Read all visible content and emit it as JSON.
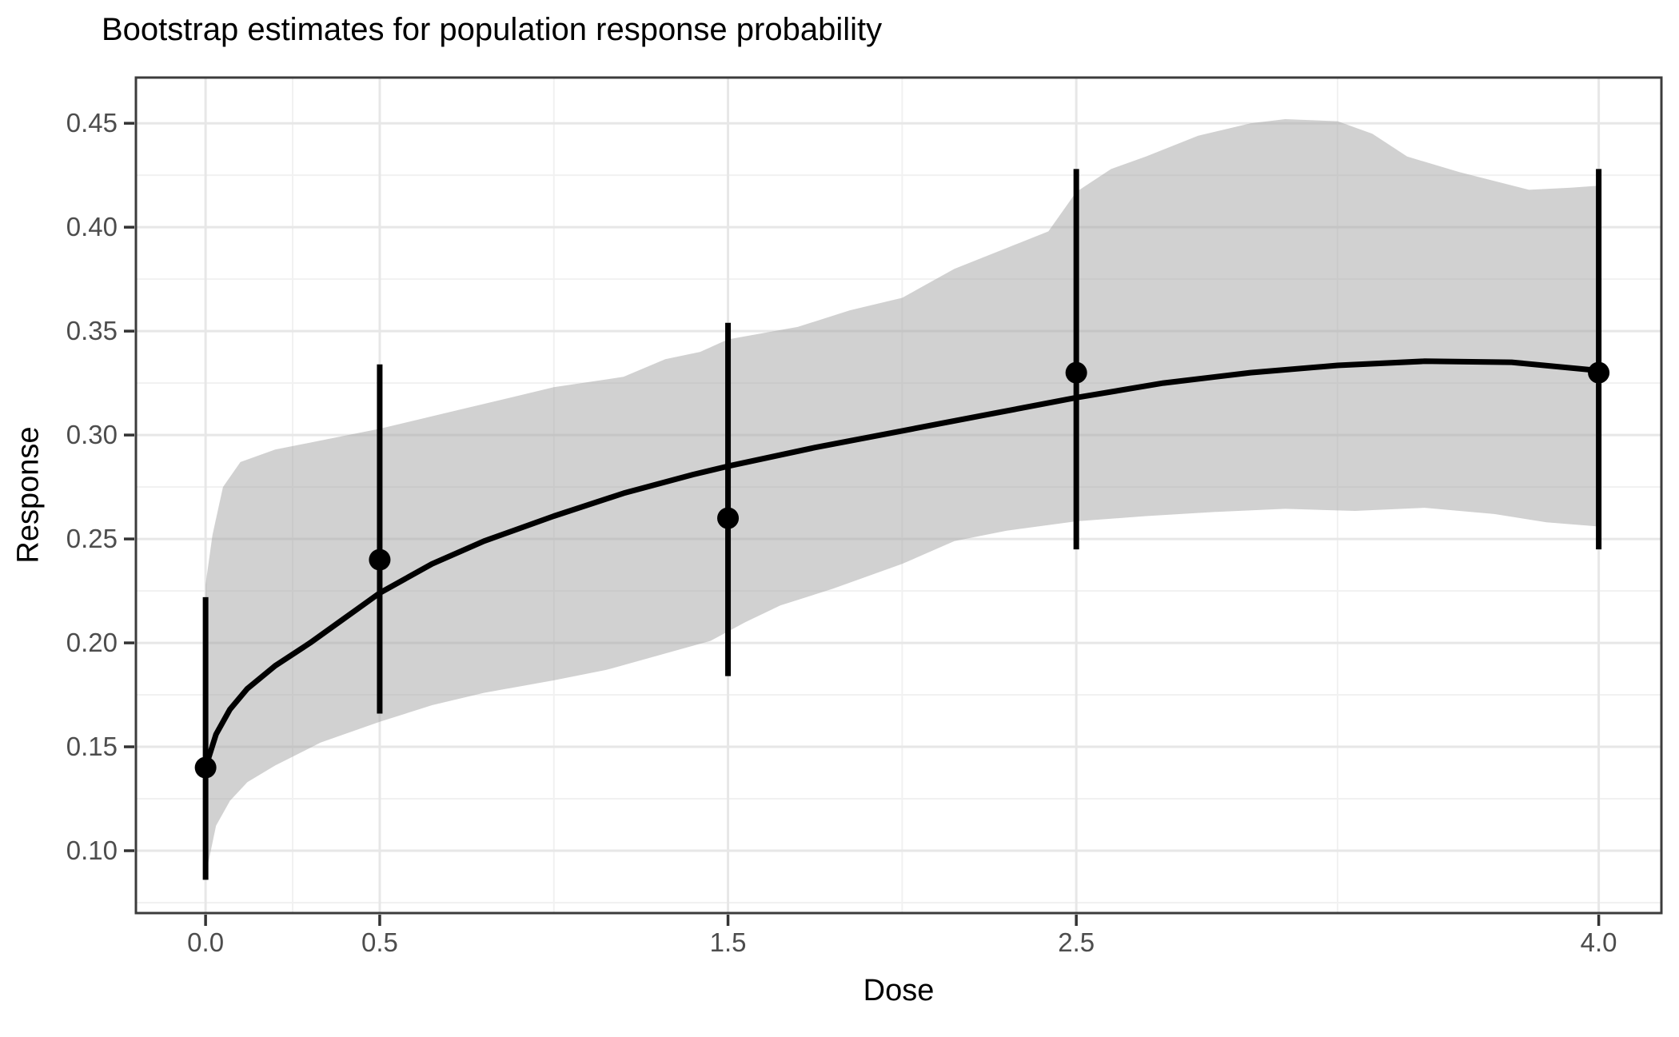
{
  "chart_data": {
    "type": "line",
    "title": "Bootstrap estimates for population response probability",
    "xlabel": "Dose",
    "ylabel": "Response",
    "grid": "on",
    "legend": "none",
    "xlim": [
      -0.2,
      4.18
    ],
    "ylim": [
      0.07,
      0.472
    ],
    "x_ticks": {
      "values": [
        0,
        0.5,
        1.5,
        2.5,
        4
      ],
      "labels": [
        "0.0",
        "0.5",
        "1.5",
        "2.5",
        "4.0"
      ]
    },
    "y_ticks": {
      "values": [
        0.1,
        0.15,
        0.2,
        0.25,
        0.3,
        0.35,
        0.4,
        0.45
      ],
      "labels": [
        "0.10",
        "0.15",
        "0.20",
        "0.25",
        "0.30",
        "0.35",
        "0.40",
        "0.45"
      ]
    },
    "x_minor": [
      0.25,
      1.0,
      2.0,
      3.25
    ],
    "y_minor": [
      0.075,
      0.125,
      0.175,
      0.225,
      0.275,
      0.325,
      0.375,
      0.425
    ],
    "points": {
      "dose": [
        0.0,
        0.5,
        1.5,
        2.5,
        4.0
      ],
      "response": [
        0.14,
        0.24,
        0.26,
        0.33,
        0.33
      ],
      "ci_low": [
        0.086,
        0.166,
        0.184,
        0.245,
        0.245
      ],
      "ci_high": [
        0.222,
        0.334,
        0.354,
        0.428,
        0.428
      ]
    },
    "fit_line": {
      "dose": [
        0,
        0.03,
        0.07,
        0.12,
        0.2,
        0.3,
        0.4,
        0.5,
        0.65,
        0.8,
        1.0,
        1.2,
        1.4,
        1.5,
        1.75,
        2.0,
        2.25,
        2.5,
        2.75,
        3.0,
        3.25,
        3.5,
        3.75,
        4.0
      ],
      "response": [
        0.14,
        0.156,
        0.168,
        0.178,
        0.189,
        0.2,
        0.212,
        0.224,
        0.238,
        0.249,
        0.261,
        0.272,
        0.281,
        0.285,
        0.294,
        0.302,
        0.31,
        0.318,
        0.325,
        0.33,
        0.3335,
        0.3355,
        0.335,
        0.331
      ]
    },
    "ribbon": {
      "upper_dose": [
        0,
        0.02,
        0.05,
        0.1,
        0.2,
        0.35,
        0.5,
        0.75,
        1.0,
        1.2,
        1.32,
        1.42,
        1.5,
        1.7,
        1.85,
        2.0,
        2.15,
        2.3,
        2.42,
        2.5,
        2.6,
        2.7,
        2.85,
        3.0,
        3.1,
        3.25,
        3.35,
        3.45,
        3.6,
        3.8,
        3.92,
        4.0
      ],
      "upper": [
        0.228,
        0.252,
        0.275,
        0.287,
        0.293,
        0.298,
        0.303,
        0.313,
        0.323,
        0.328,
        0.3365,
        0.34,
        0.346,
        0.352,
        0.36,
        0.366,
        0.38,
        0.39,
        0.398,
        0.417,
        0.428,
        0.434,
        0.444,
        0.45,
        0.452,
        0.451,
        0.445,
        0.434,
        0.4265,
        0.418,
        0.419,
        0.42
      ],
      "lower_dose": [
        0,
        0.03,
        0.07,
        0.12,
        0.2,
        0.33,
        0.5,
        0.65,
        0.8,
        1.0,
        1.15,
        1.3,
        1.45,
        1.55,
        1.65,
        1.8,
        2.0,
        2.15,
        2.3,
        2.5,
        2.7,
        2.9,
        3.1,
        3.3,
        3.5,
        3.7,
        3.85,
        4.0
      ],
      "lower": [
        0.088,
        0.112,
        0.124,
        0.133,
        0.141,
        0.152,
        0.162,
        0.17,
        0.176,
        0.182,
        0.187,
        0.194,
        0.201,
        0.21,
        0.218,
        0.226,
        0.238,
        0.249,
        0.254,
        0.2585,
        0.261,
        0.263,
        0.2645,
        0.2635,
        0.265,
        0.262,
        0.258,
        0.256
      ]
    },
    "colors": {
      "ribbon_fill": "rgba(163,163,163,0.5)",
      "fit_line": "#000000",
      "point": "#000000",
      "error_bar": "#000000",
      "grid_major": "#e7e7e7",
      "grid_minor": "#f1f1f1",
      "panel_border": "#3c3c3c",
      "tick_mark": "#333333",
      "tick_label": "#4d4d4d",
      "title": "#000000"
    }
  }
}
